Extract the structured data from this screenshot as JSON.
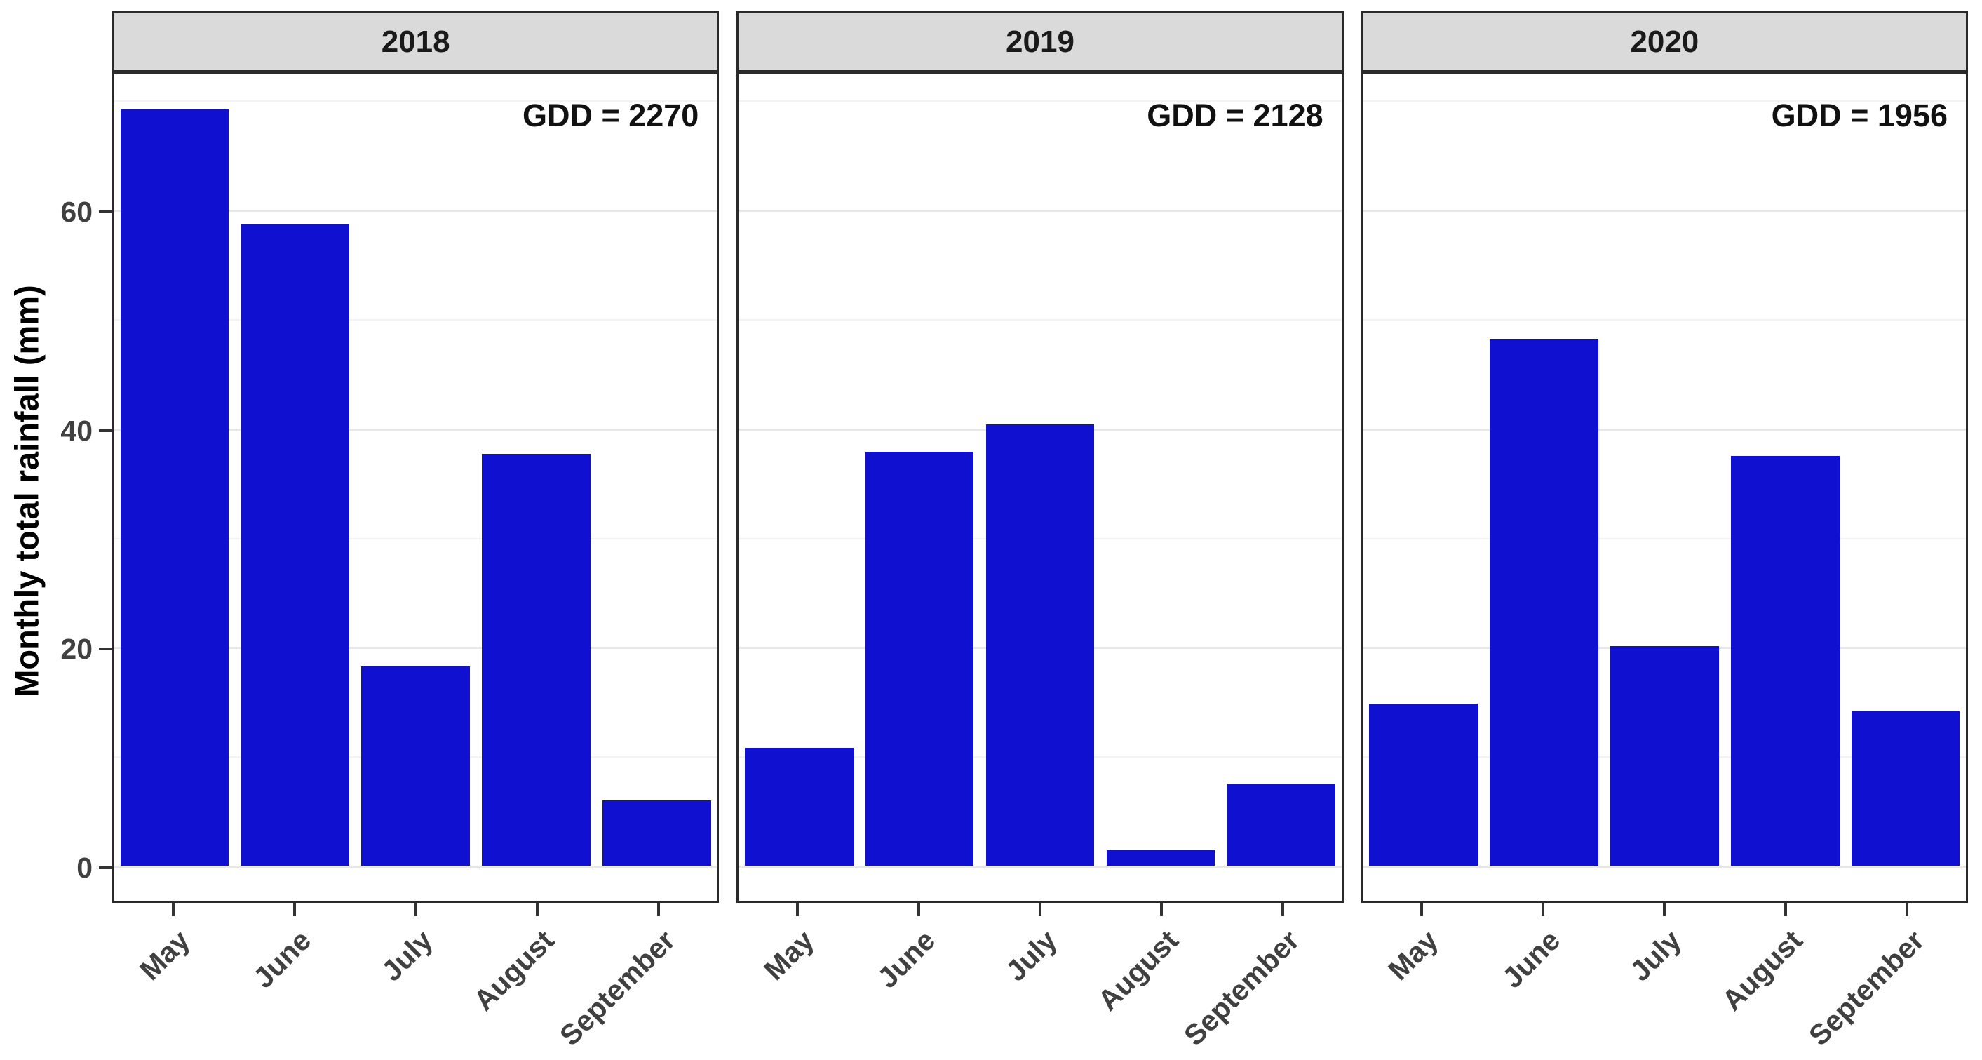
{
  "chart_data": {
    "type": "bar",
    "title": "",
    "xlabel": "",
    "ylabel": "Monthly total rainfall (mm)",
    "categories": [
      "May",
      "June",
      "July",
      "August",
      "September"
    ],
    "facets": [
      {
        "name": "2018",
        "annotation": "GDD = 2270",
        "gdd": 2270,
        "values": [
          69.2,
          58.7,
          18.2,
          37.7,
          6.0
        ]
      },
      {
        "name": "2019",
        "annotation": "GDD = 2128",
        "gdd": 2128,
        "values": [
          10.8,
          37.9,
          40.4,
          1.4,
          7.5
        ]
      },
      {
        "name": "2020",
        "annotation": "GDD = 1956",
        "gdd": 1956,
        "values": [
          14.8,
          48.2,
          20.1,
          37.5,
          14.1
        ]
      }
    ],
    "ylim": [
      0,
      72
    ],
    "yticks": [
      0,
      20,
      40,
      60
    ],
    "grid": {
      "horizontal_major_every": 20,
      "horizontal_minor_every": 10,
      "vertical": false
    },
    "legend": "none",
    "x_label_rotation_deg": 45,
    "bar_color": "#1010d0",
    "strip_bg_color": "#dadada",
    "border_color": "#2a2a2a"
  }
}
